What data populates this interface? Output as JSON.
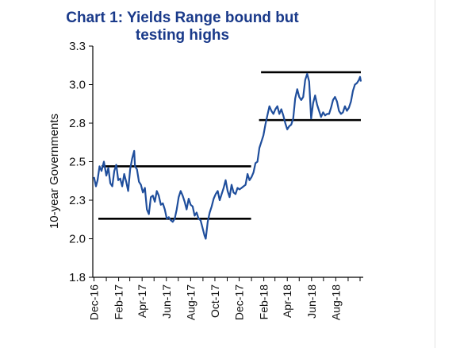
{
  "title_line1": "Chart 1: Yields Range bound but",
  "title_line2": "testing highs",
  "chart_data": {
    "type": "line",
    "ylabel": "10-year Governments",
    "xlabel": "",
    "ylim": [
      1.8,
      3.3
    ],
    "y_ticks": [
      "3.3",
      "3.0",
      "2.8",
      "2.5",
      "2.3",
      "2.0",
      "1.8"
    ],
    "y_tick_values": [
      3.3,
      3.05,
      2.8,
      2.55,
      2.3,
      2.05,
      1.8
    ],
    "x_ticks": [
      "Dec-16",
      "Feb-17",
      "Apr-17",
      "Jun-17",
      "Aug-17",
      "Oct-17",
      "Dec-17",
      "Feb-18",
      "Apr-18",
      "Jun-18",
      "Aug-18"
    ],
    "line_color": "#1f4e9c",
    "series": [
      {
        "values": [
          [
            "2016-12-01",
            2.45
          ],
          [
            "2016-12-06",
            2.39
          ],
          [
            "2016-12-10",
            2.43
          ],
          [
            "2016-12-15",
            2.52
          ],
          [
            "2016-12-20",
            2.49
          ],
          [
            "2016-12-26",
            2.55
          ],
          [
            "2017-01-01",
            2.46
          ],
          [
            "2017-01-06",
            2.51
          ],
          [
            "2017-01-11",
            2.41
          ],
          [
            "2017-01-16",
            2.39
          ],
          [
            "2017-01-21",
            2.49
          ],
          [
            "2017-01-26",
            2.53
          ],
          [
            "2017-01-31",
            2.43
          ],
          [
            "2017-02-05",
            2.44
          ],
          [
            "2017-02-10",
            2.39
          ],
          [
            "2017-02-15",
            2.47
          ],
          [
            "2017-02-20",
            2.42
          ],
          [
            "2017-02-25",
            2.36
          ],
          [
            "2017-03-02",
            2.5
          ],
          [
            "2017-03-07",
            2.57
          ],
          [
            "2017-03-12",
            2.62
          ],
          [
            "2017-03-14",
            2.52
          ],
          [
            "2017-03-19",
            2.5
          ],
          [
            "2017-03-24",
            2.42
          ],
          [
            "2017-03-29",
            2.4
          ],
          [
            "2017-04-03",
            2.35
          ],
          [
            "2017-04-08",
            2.38
          ],
          [
            "2017-04-13",
            2.24
          ],
          [
            "2017-04-18",
            2.21
          ],
          [
            "2017-04-23",
            2.32
          ],
          [
            "2017-04-28",
            2.33
          ],
          [
            "2017-05-03",
            2.29
          ],
          [
            "2017-05-08",
            2.36
          ],
          [
            "2017-05-13",
            2.33
          ],
          [
            "2017-05-18",
            2.27
          ],
          [
            "2017-05-23",
            2.28
          ],
          [
            "2017-05-28",
            2.24
          ],
          [
            "2017-06-02",
            2.18
          ],
          [
            "2017-06-07",
            2.19
          ],
          [
            "2017-06-12",
            2.17
          ],
          [
            "2017-06-17",
            2.16
          ],
          [
            "2017-06-22",
            2.18
          ],
          [
            "2017-06-27",
            2.24
          ],
          [
            "2017-07-02",
            2.32
          ],
          [
            "2017-07-07",
            2.36
          ],
          [
            "2017-07-12",
            2.33
          ],
          [
            "2017-07-17",
            2.29
          ],
          [
            "2017-07-22",
            2.24
          ],
          [
            "2017-07-27",
            2.31
          ],
          [
            "2017-08-01",
            2.27
          ],
          [
            "2017-08-06",
            2.26
          ],
          [
            "2017-08-11",
            2.2
          ],
          [
            "2017-08-16",
            2.22
          ],
          [
            "2017-08-21",
            2.18
          ],
          [
            "2017-08-26",
            2.17
          ],
          [
            "2017-08-31",
            2.12
          ],
          [
            "2017-09-05",
            2.07
          ],
          [
            "2017-09-08",
            2.05
          ],
          [
            "2017-09-13",
            2.16
          ],
          [
            "2017-09-18",
            2.22
          ],
          [
            "2017-09-23",
            2.26
          ],
          [
            "2017-09-28",
            2.31
          ],
          [
            "2017-10-03",
            2.34
          ],
          [
            "2017-10-08",
            2.36
          ],
          [
            "2017-10-13",
            2.3
          ],
          [
            "2017-10-18",
            2.34
          ],
          [
            "2017-10-23",
            2.38
          ],
          [
            "2017-10-28",
            2.43
          ],
          [
            "2017-11-02",
            2.36
          ],
          [
            "2017-11-07",
            2.32
          ],
          [
            "2017-11-12",
            2.4
          ],
          [
            "2017-11-17",
            2.35
          ],
          [
            "2017-11-22",
            2.34
          ],
          [
            "2017-11-27",
            2.38
          ],
          [
            "2017-12-02",
            2.37
          ],
          [
            "2017-12-07",
            2.38
          ],
          [
            "2017-12-12",
            2.39
          ],
          [
            "2017-12-17",
            2.4
          ],
          [
            "2017-12-22",
            2.47
          ],
          [
            "2017-12-27",
            2.43
          ],
          [
            "2018-01-01",
            2.45
          ],
          [
            "2018-01-06",
            2.48
          ],
          [
            "2018-01-11",
            2.54
          ],
          [
            "2018-01-16",
            2.55
          ],
          [
            "2018-01-21",
            2.64
          ],
          [
            "2018-01-26",
            2.68
          ],
          [
            "2018-01-31",
            2.72
          ],
          [
            "2018-02-05",
            2.79
          ],
          [
            "2018-02-10",
            2.85
          ],
          [
            "2018-02-15",
            2.91
          ],
          [
            "2018-02-20",
            2.88
          ],
          [
            "2018-02-25",
            2.86
          ],
          [
            "2018-03-02",
            2.89
          ],
          [
            "2018-03-07",
            2.91
          ],
          [
            "2018-03-12",
            2.86
          ],
          [
            "2018-03-17",
            2.89
          ],
          [
            "2018-03-22",
            2.85
          ],
          [
            "2018-03-27",
            2.8
          ],
          [
            "2018-04-01",
            2.76
          ],
          [
            "2018-04-06",
            2.78
          ],
          [
            "2018-04-11",
            2.79
          ],
          [
            "2018-04-16",
            2.83
          ],
          [
            "2018-04-21",
            2.96
          ],
          [
            "2018-04-26",
            3.02
          ],
          [
            "2018-05-01",
            2.97
          ],
          [
            "2018-05-06",
            2.95
          ],
          [
            "2018-05-11",
            2.97
          ],
          [
            "2018-05-16",
            3.08
          ],
          [
            "2018-05-21",
            3.12
          ],
          [
            "2018-05-26",
            3.07
          ],
          [
            "2018-05-31",
            2.83
          ],
          [
            "2018-06-05",
            2.93
          ],
          [
            "2018-06-10",
            2.98
          ],
          [
            "2018-06-15",
            2.92
          ],
          [
            "2018-06-20",
            2.88
          ],
          [
            "2018-06-25",
            2.84
          ],
          [
            "2018-06-30",
            2.87
          ],
          [
            "2018-07-05",
            2.85
          ],
          [
            "2018-07-10",
            2.86
          ],
          [
            "2018-07-15",
            2.86
          ],
          [
            "2018-07-20",
            2.9
          ],
          [
            "2018-07-25",
            2.95
          ],
          [
            "2018-07-30",
            2.97
          ],
          [
            "2018-08-04",
            2.94
          ],
          [
            "2018-08-09",
            2.88
          ],
          [
            "2018-08-14",
            2.86
          ],
          [
            "2018-08-19",
            2.87
          ],
          [
            "2018-08-24",
            2.91
          ],
          [
            "2018-08-29",
            2.88
          ],
          [
            "2018-09-03",
            2.9
          ],
          [
            "2018-09-08",
            2.94
          ],
          [
            "2018-09-13",
            3.01
          ],
          [
            "2018-09-18",
            3.05
          ],
          [
            "2018-09-23",
            3.06
          ],
          [
            "2018-09-28",
            3.08
          ],
          [
            "2018-10-01",
            3.1
          ],
          [
            "2018-10-03",
            3.07
          ]
        ]
      }
    ],
    "annotations": [
      {
        "type": "range-line",
        "y": 2.52,
        "x_start": "2016-12-20",
        "x_end": "2017-12-31",
        "color": "#000000"
      },
      {
        "type": "range-line",
        "y": 2.18,
        "x_start": "2016-12-12",
        "x_end": "2017-12-31",
        "color": "#000000"
      },
      {
        "type": "range-line",
        "y": 3.13,
        "x_start": "2018-01-25",
        "x_end": "2018-10-03",
        "color": "#000000"
      },
      {
        "type": "range-line",
        "y": 2.82,
        "x_start": "2018-01-20",
        "x_end": "2018-10-03",
        "color": "#000000"
      }
    ],
    "grid": false,
    "legend": "none"
  }
}
